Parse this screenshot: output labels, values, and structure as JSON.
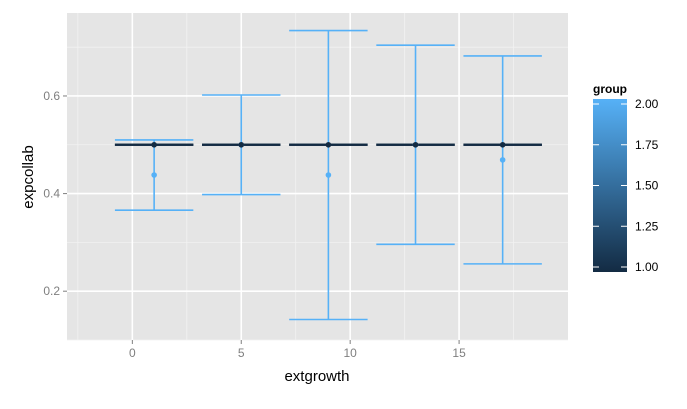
{
  "chart_data": {
    "type": "errorbar",
    "xlabel": "extgrowth",
    "ylabel": "expcollab",
    "xlim": [
      -3,
      20
    ],
    "ylim": [
      0.1,
      0.77
    ],
    "x_ticks": [
      0,
      5,
      10,
      15
    ],
    "y_ticks": [
      0.2,
      0.4,
      0.6
    ],
    "y_tick_labels": [
      "0.2",
      "0.4",
      "0.6"
    ],
    "grid": true,
    "legend": {
      "title": "group",
      "position": "right",
      "type": "colorbar",
      "range": [
        1.0,
        2.0
      ],
      "ticks": [
        "1.00",
        "1.25",
        "1.50",
        "1.75",
        "2.00"
      ],
      "low_color": "#132b43",
      "high_color": "#56b1f7"
    },
    "series": [
      {
        "group": 1.0,
        "color": "#132b43",
        "error_halfwidth_x": 1.8,
        "points": [
          {
            "x": 1,
            "y": 0.5,
            "ymin": 0.5,
            "ymax": 0.5
          },
          {
            "x": 5,
            "y": 0.5,
            "ymin": 0.5,
            "ymax": 0.5
          },
          {
            "x": 9,
            "y": 0.5,
            "ymin": 0.5,
            "ymax": 0.5
          },
          {
            "x": 13,
            "y": 0.5,
            "ymin": 0.5,
            "ymax": 0.5
          },
          {
            "x": 17,
            "y": 0.5,
            "ymin": 0.5,
            "ymax": 0.5
          }
        ]
      },
      {
        "group": 2.0,
        "color": "#56b1f7",
        "error_halfwidth_x": 1.8,
        "points": [
          {
            "x": 1,
            "y": 0.438,
            "ymin": 0.366,
            "ymax": 0.51
          },
          {
            "x": 5,
            "y": 0.5,
            "ymin": 0.398,
            "ymax": 0.602
          },
          {
            "x": 9,
            "y": 0.438,
            "ymin": 0.142,
            "ymax": 0.734
          },
          {
            "x": 13,
            "y": 0.5,
            "ymin": 0.296,
            "ymax": 0.704
          },
          {
            "x": 17,
            "y": 0.469,
            "ymin": 0.256,
            "ymax": 0.682
          }
        ]
      }
    ]
  }
}
